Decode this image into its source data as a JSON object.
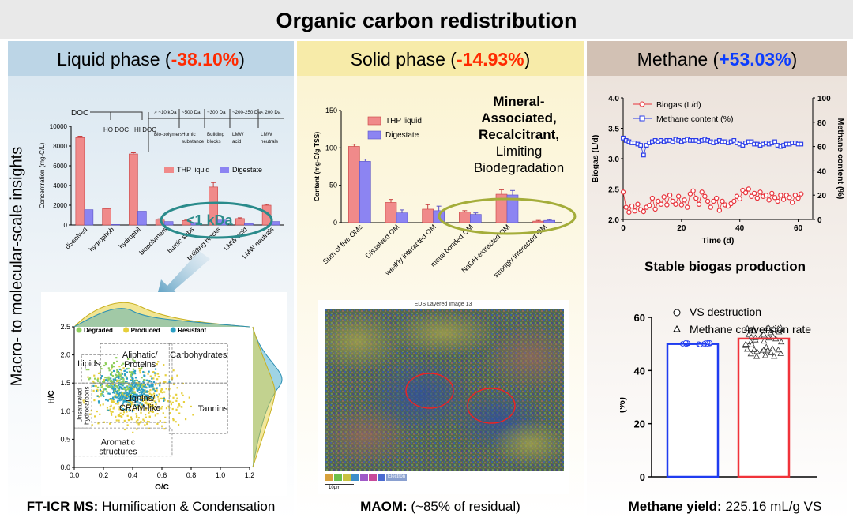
{
  "title": "Organic carbon redistribution",
  "panels": {
    "liquid": {
      "label": "Liquid phase (",
      "value": "-38.10%",
      "close": ")"
    },
    "solid": {
      "label": "Solid phase (",
      "value": "-14.93%",
      "close": ")"
    },
    "methane": {
      "label": "Methane (",
      "value": "+53.03%",
      "close": ")"
    }
  },
  "side_label": "Macro- to molecular-scale insights",
  "liquid_chart": {
    "type": "bar",
    "ylabel": "Concentration (mg-C/L)",
    "ylim": [
      0,
      10000
    ],
    "yticks": [
      "0",
      "2000",
      "4000",
      "6000",
      "8000",
      "10000"
    ],
    "categories": [
      "dissolved",
      "hydrophob",
      "hydrophil",
      "biopolymers",
      "humic subs",
      "building blocks",
      "LMW acid",
      "LMW neutrals"
    ],
    "series": [
      {
        "name": "THP liquid",
        "color": "#f08a8a",
        "values": [
          8850,
          1650,
          7200,
          500,
          450,
          3850,
          650,
          2000
        ]
      },
      {
        "name": "Digestate",
        "color": "#8c84f2",
        "values": [
          1550,
          50,
          1400,
          350,
          250,
          500,
          150,
          350
        ]
      }
    ],
    "errors": [
      150,
      50,
      120,
      120,
      50,
      450,
      80,
      80
    ],
    "tree": {
      "root": "DOC",
      "ho": "HO DOC",
      "hi": "HI DOC",
      "sizes": [
        "> ~10 kDa",
        "~500 Da",
        "~300 Da",
        "~200-250 Da",
        "< 200 Da"
      ],
      "groups": [
        "Bio-polymers",
        "Humic substance",
        "Building blocks",
        "LMW acid",
        "LMW neutrals"
      ]
    },
    "annotation": "<1 kDa"
  },
  "vk": {
    "type": "scatter",
    "legend": [
      "Degraded",
      "Produced",
      "Resistant"
    ],
    "legend_colors": [
      "#8fcf5c",
      "#e6cf3a",
      "#2a9fc4"
    ],
    "xlabel": "O/C",
    "ylabel": "H/C",
    "xlim": [
      0,
      1.2
    ],
    "ylim": [
      0,
      2.5
    ],
    "xticks": [
      "0.0",
      "0.2",
      "0.4",
      "0.6",
      "0.8",
      "1.0",
      "1.2"
    ],
    "yticks": [
      "0.0",
      "0.5",
      "1.0",
      "1.5",
      "2.0",
      "2.5"
    ],
    "regions": [
      "Lipids",
      "Aliphatic/ Proteins",
      "Carbohydrates",
      "Lignins/ CRAM-like",
      "Tannins",
      "Unsaturated hydrocarbons",
      "Aromatic structures"
    ]
  },
  "liquid_caption": {
    "bold": "FT-ICR MS:",
    "rest": " Humification & Condensation"
  },
  "solid_chart": {
    "type": "bar",
    "ylabel": "Content (mg-C/g TSS)",
    "ylim": [
      0,
      150
    ],
    "yticks": [
      "0",
      "50",
      "100",
      "150"
    ],
    "categories": [
      "Sum of five OMs",
      "Dissolved OM",
      "weakly interacted OM",
      "metal bonded OM",
      "NaOH-extracted OM",
      "strongly interacted OM"
    ],
    "series": [
      {
        "name": "THP liquid",
        "color": "#f08a8a",
        "values": [
          102,
          27,
          18,
          14,
          38,
          2
        ]
      },
      {
        "name": "Digestate",
        "color": "#8c84f2",
        "values": [
          82,
          13,
          16,
          11,
          37,
          3
        ]
      }
    ],
    "errors": [
      3,
      4,
      6,
      2,
      6,
      1
    ]
  },
  "solid_note": {
    "l1": "Mineral-",
    "l2": "Associated,",
    "l3": "Recalcitrant,",
    "l4": "Limiting",
    "l5": "Biodegradation"
  },
  "eds": {
    "title": "EDS Layered Image 13",
    "scale": "10µm",
    "legend": "Electron"
  },
  "solid_caption": {
    "bold": "MAOM:",
    "rest": " (~85% of residual)"
  },
  "biogas_chart": {
    "type": "line",
    "xlabel": "Time (d)",
    "ylabel": "Biogas (L/d)",
    "y2label": "Methane content (%)",
    "xlim": [
      0,
      65
    ],
    "ylim": [
      2.0,
      4.0
    ],
    "y2lim": [
      0,
      100
    ],
    "xticks": [
      "0",
      "20",
      "40",
      "60"
    ],
    "yticks": [
      "2.0",
      "2.5",
      "3.0",
      "3.5",
      "4.0"
    ],
    "y2ticks": [
      "0",
      "20",
      "40",
      "60",
      "80",
      "100"
    ],
    "legend": [
      "Biogas (L/d)",
      "Methane content (%)"
    ],
    "biogas": {
      "x": [
        0,
        1,
        2,
        3,
        4,
        5,
        6,
        7,
        8,
        9,
        10,
        11,
        12,
        13,
        14,
        15,
        16,
        17,
        18,
        19,
        20,
        21,
        22,
        23,
        24,
        25,
        26,
        27,
        28,
        29,
        30,
        31,
        32,
        33,
        34,
        35,
        36,
        37,
        38,
        39,
        40,
        41,
        42,
        43,
        44,
        45,
        46,
        47,
        48,
        49,
        50,
        51,
        52,
        53,
        54,
        55,
        56,
        57,
        58,
        59,
        60,
        61
      ],
      "y": [
        2.45,
        2.2,
        2.12,
        2.22,
        2.14,
        2.25,
        2.16,
        2.13,
        2.2,
        2.23,
        2.35,
        2.17,
        2.3,
        2.25,
        2.37,
        2.24,
        2.4,
        2.3,
        2.25,
        2.38,
        2.24,
        2.32,
        2.2,
        2.42,
        2.47,
        2.35,
        2.25,
        2.45,
        2.38,
        2.3,
        2.2,
        2.3,
        2.35,
        2.15,
        2.3,
        2.24,
        2.22,
        2.26,
        2.3,
        2.38,
        2.34,
        2.48,
        2.44,
        2.5,
        2.38,
        2.43,
        2.35,
        2.45,
        2.38,
        2.4,
        2.32,
        2.43,
        2.36,
        2.3,
        2.4,
        2.33,
        2.4,
        2.36,
        2.28,
        2.4,
        2.35,
        2.42
      ]
    },
    "methane": {
      "x": [
        0,
        1,
        2,
        3,
        4,
        5,
        6,
        7,
        8,
        9,
        10,
        11,
        12,
        13,
        14,
        15,
        16,
        17,
        18,
        19,
        20,
        21,
        22,
        23,
        24,
        25,
        26,
        27,
        28,
        29,
        30,
        31,
        32,
        33,
        34,
        35,
        36,
        37,
        38,
        39,
        40,
        41,
        42,
        43,
        44,
        45,
        46,
        47,
        48,
        49,
        50,
        51,
        52,
        53,
        54,
        55,
        56,
        57,
        58,
        59,
        60,
        61
      ],
      "y": [
        67,
        65,
        64,
        63,
        63,
        62,
        61,
        53,
        61,
        63,
        64,
        65,
        64,
        65,
        64,
        65,
        65,
        64,
        66,
        65,
        64,
        65,
        66,
        65,
        65,
        65,
        64,
        65,
        66,
        65,
        64,
        63,
        64,
        65,
        64,
        64,
        63,
        64,
        65,
        63,
        62,
        61,
        63,
        64,
        64,
        62,
        62,
        61,
        62,
        63,
        62,
        63,
        64,
        61,
        60,
        61,
        62,
        62,
        63,
        63,
        62,
        62
      ]
    },
    "caption": "Stable biogas production"
  },
  "vs_chart": {
    "type": "bar",
    "ylabel": "(%)",
    "ylim": [
      0,
      60
    ],
    "yticks": [
      "0",
      "20",
      "40",
      "60"
    ],
    "legend": [
      "VS destruction",
      "Methane conversion rate"
    ],
    "values": [
      50,
      52
    ],
    "colors": [
      "#1f3cf0",
      "#f0333a"
    ]
  },
  "methane_caption": {
    "bold": "Methane yield:",
    "rest": " 225.16 mL/g VS"
  }
}
